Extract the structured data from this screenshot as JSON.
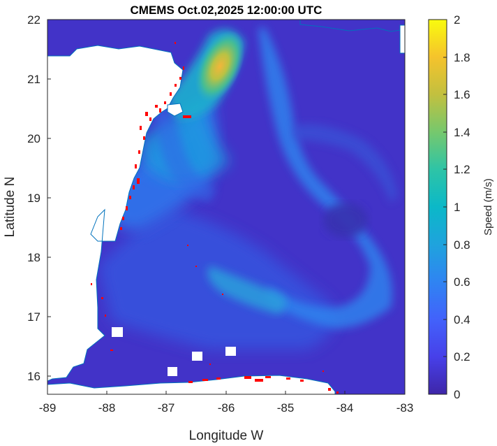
{
  "map": {
    "title": "CMEMS Oct.02,2025 12:00:00 UTC",
    "xlabel": "Longitude W",
    "ylabel": "Latitude N",
    "x_ticks": [
      "-89",
      "-88",
      "-87",
      "-86",
      "-85",
      "-84",
      "-83"
    ],
    "y_ticks": [
      "22",
      "21",
      "20",
      "19",
      "18",
      "17",
      "16"
    ],
    "colorbar": {
      "label": "Speed (m/s)",
      "ticks": [
        "2",
        "1.8",
        "1.6",
        "1.4",
        "1.2",
        "1",
        "0.8",
        "0.6",
        "0.4",
        "0.2",
        "0"
      ],
      "colormap": "parula",
      "range": [
        0,
        2
      ]
    },
    "colors": {
      "ocean_low": "#3e26a8",
      "ocean_mid": "#2f5ce8",
      "current": "#16b6c7",
      "current_peak": "#f8ba3d",
      "coastline": "#0072bd",
      "sargassum": "#ff0000",
      "land": "#ffffff"
    },
    "layers": [
      "current speed field",
      "coastline",
      "sargassum detections"
    ]
  }
}
